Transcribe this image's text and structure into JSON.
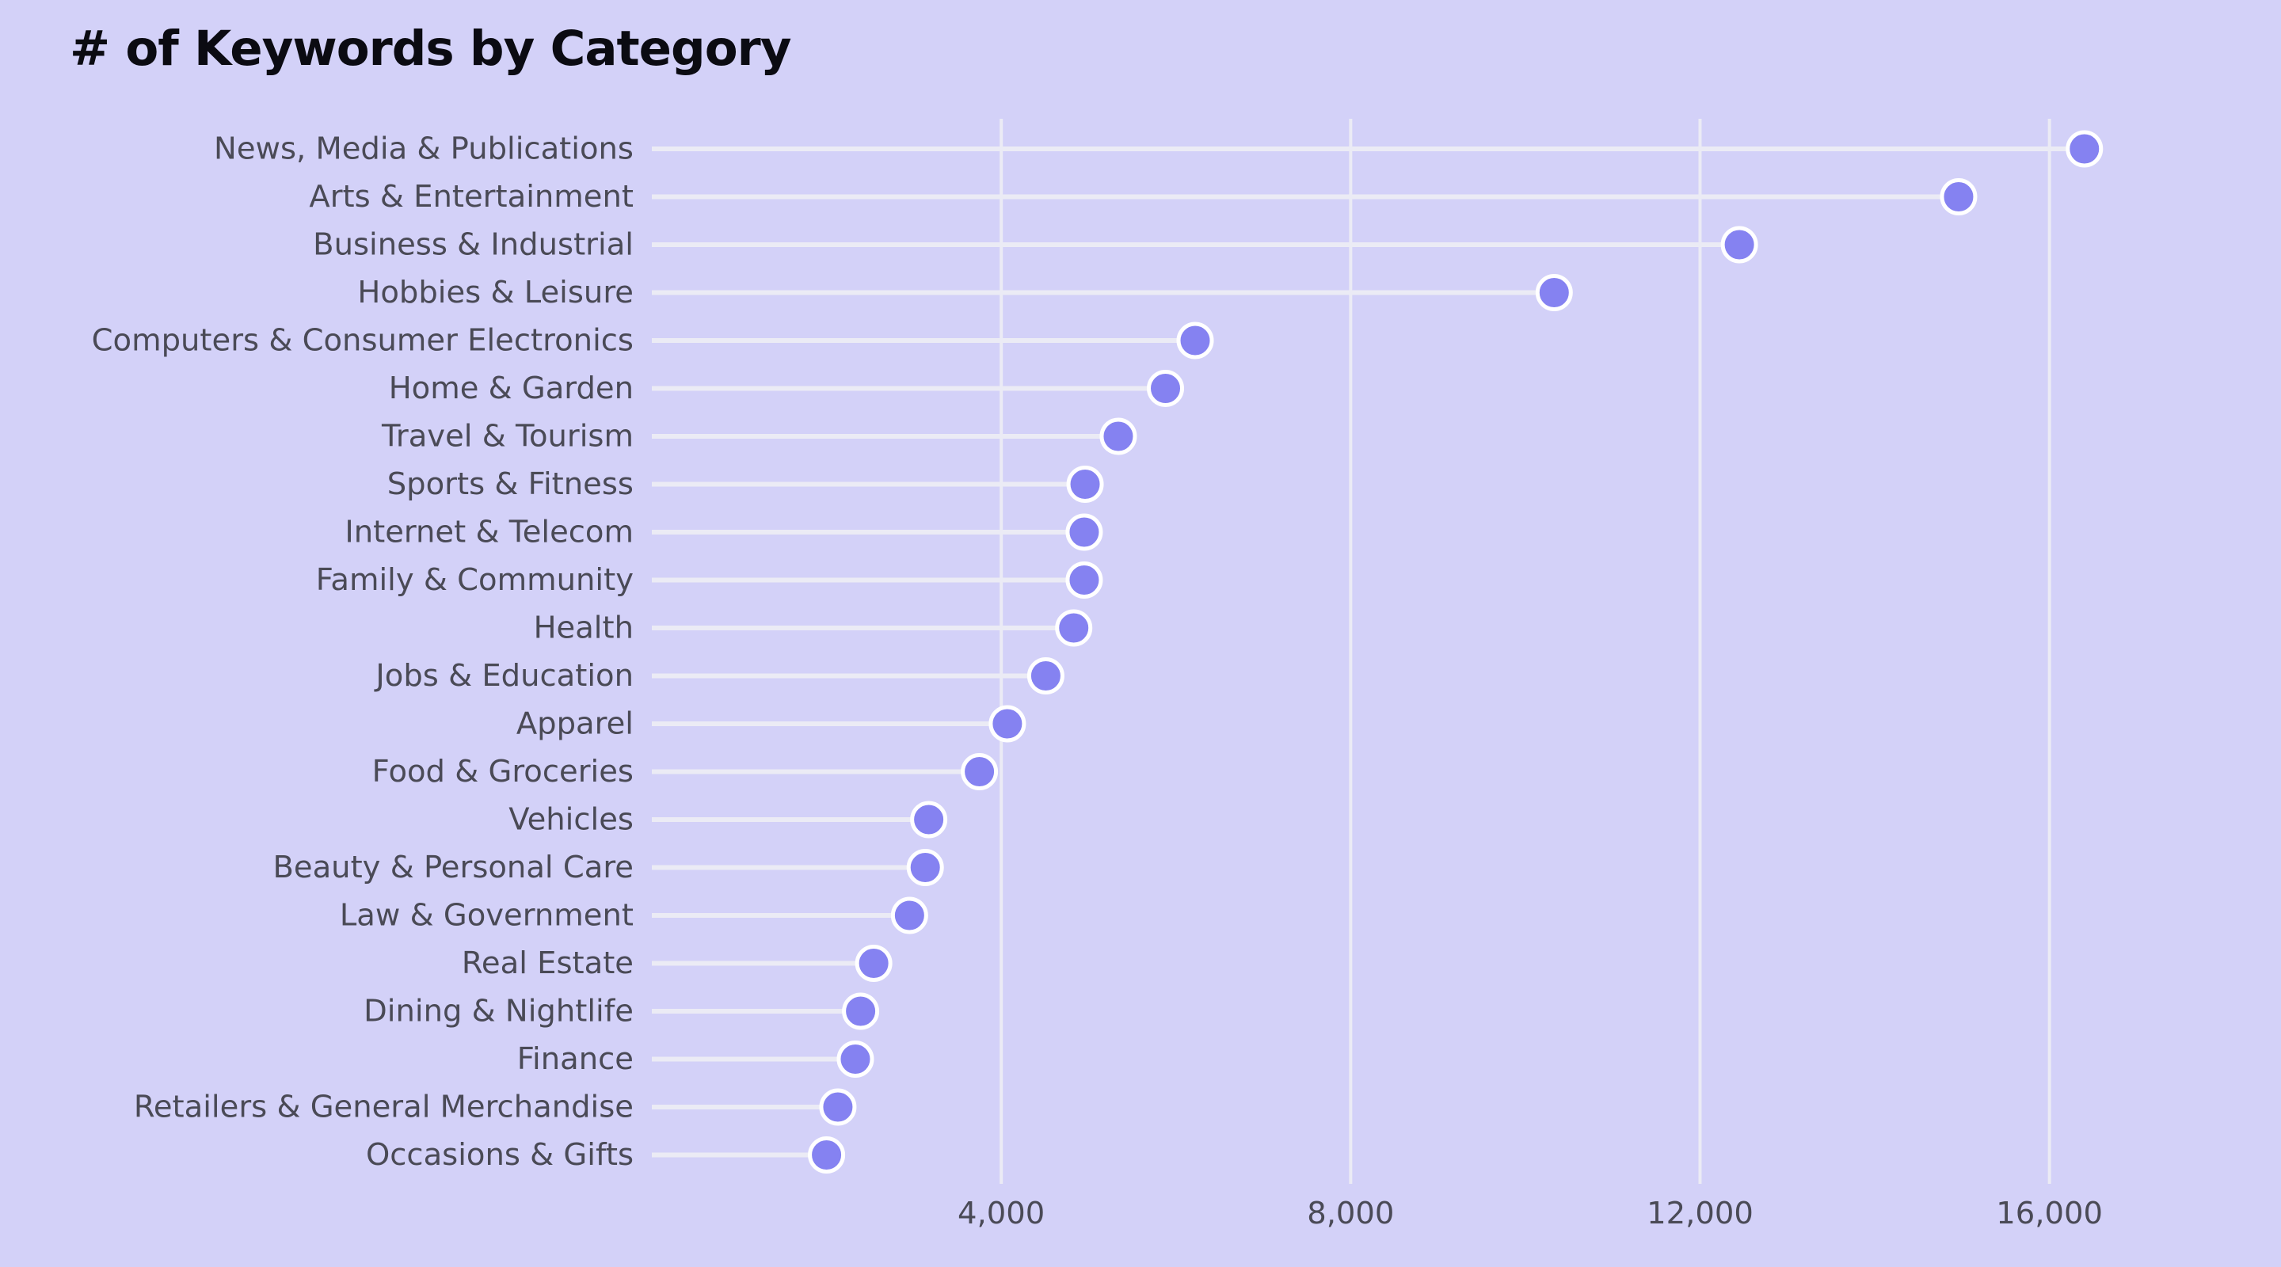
{
  "chart_data": {
    "type": "lollipop",
    "title": "# of Keywords by Category",
    "xlabel": "",
    "ylabel": "",
    "orientation": "horizontal",
    "categories": [
      "News, Media & Publications",
      "Arts & Entertainment",
      "Business & Industrial",
      "Hobbies & Leisure",
      "Computers & Consumer Electronics",
      "Home & Garden",
      "Travel & Tourism",
      "Sports & Fitness",
      "Internet & Telecom",
      "Family & Community",
      "Health",
      "Jobs & Education",
      "Apparel",
      "Food & Groceries",
      "Vehicles",
      "Beauty & Personal Care",
      "Law & Government",
      "Real Estate",
      "Dining & Nightlife",
      "Finance",
      "Retailers & General Merchandise",
      "Occasions & Gifts"
    ],
    "values": [
      16400,
      14960,
      12450,
      10330,
      6220,
      5880,
      5340,
      4960,
      4950,
      4950,
      4830,
      4510,
      4070,
      3750,
      3170,
      3130,
      2950,
      2540,
      2390,
      2330,
      2130,
      2000
    ],
    "xlim": [
      0,
      17200
    ],
    "xticks": [
      4000,
      8000,
      12000,
      16000
    ],
    "xtick_labels": [
      "4,000",
      "8,000",
      "12,000",
      "16,000"
    ],
    "grid": "vertical",
    "colors": {
      "background": "#d3d1f8",
      "dot": "#8582f1",
      "dot_outline": "#ffffff",
      "stem": "#ebebf5",
      "gridline": "#ebebf5",
      "label_text": "#4a4a56",
      "title_text": "#0b0b12"
    }
  }
}
